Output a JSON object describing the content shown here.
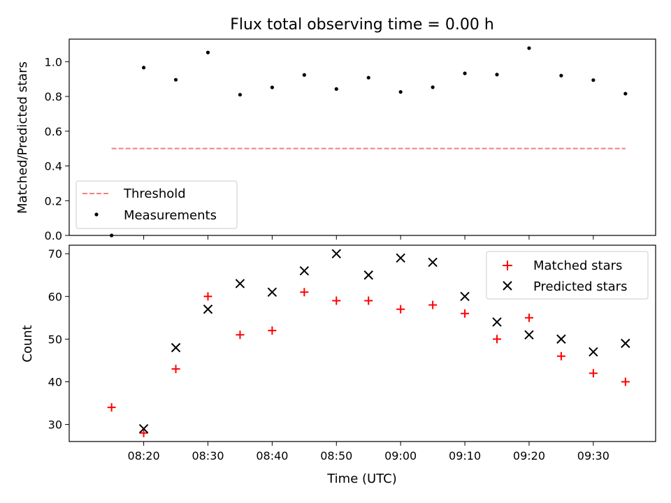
{
  "chart_data": {
    "title": "Flux total observing time = 0.00 h",
    "xlabel": "Time (UTC)",
    "x_tick_labels": [
      "08:20",
      "08:30",
      "08:40",
      "08:50",
      "09:00",
      "09:10",
      "09:20",
      "09:30"
    ],
    "x_tick_minutes": [
      500,
      510,
      520,
      530,
      540,
      550,
      560,
      570
    ],
    "xlim_minutes": [
      488.4,
      579.7
    ],
    "times": [
      "08:15",
      "08:20",
      "08:25",
      "08:30",
      "08:35",
      "08:40",
      "08:45",
      "08:50",
      "08:55",
      "09:00",
      "09:05",
      "09:10",
      "09:15",
      "09:20",
      "09:25",
      "09:30",
      "09:35"
    ],
    "time_minutes": [
      495,
      500,
      505,
      510,
      515,
      520,
      525,
      530,
      535,
      540,
      545,
      550,
      555,
      560,
      565,
      570,
      575
    ],
    "panels": [
      {
        "type": "scatter",
        "ylabel": "Matched/Predicted stars",
        "ylim": [
          0,
          1.13
        ],
        "yticks": [
          0.0,
          0.2,
          0.4,
          0.6,
          0.8,
          1.0
        ],
        "ytick_labels": [
          "0.0",
          "0.2",
          "0.4",
          "0.6",
          "0.8",
          "1.0"
        ],
        "threshold": {
          "name": "Threshold",
          "value": 0.5,
          "color": "#f08080",
          "x_range_minutes": [
            495,
            575
          ]
        },
        "series": [
          {
            "name": "Measurements",
            "marker": "dot",
            "color": "#000000",
            "values": [
              0.0,
              0.966,
              0.896,
              1.053,
              0.81,
              0.852,
              0.924,
              0.843,
              0.908,
              0.826,
              0.853,
              0.933,
              0.926,
              1.078,
              0.92,
              0.894,
              0.816
            ]
          }
        ],
        "legend_position": "lower-left"
      },
      {
        "type": "scatter",
        "ylabel": "Count",
        "ylim": [
          26,
          72
        ],
        "yticks": [
          30,
          40,
          50,
          60,
          70
        ],
        "ytick_labels": [
          "30",
          "40",
          "50",
          "60",
          "70"
        ],
        "series": [
          {
            "name": "Matched stars",
            "marker": "plus",
            "color": "#ff0000",
            "values": [
              34,
              28,
              43,
              60,
              51,
              52,
              61,
              59,
              59,
              57,
              58,
              56,
              50,
              55,
              46,
              42,
              40
            ]
          },
          {
            "name": "Predicted stars",
            "marker": "x",
            "color": "#000000",
            "values": [
              null,
              29,
              48,
              57,
              63,
              61,
              66,
              70,
              65,
              69,
              68,
              60,
              54,
              51,
              50,
              47,
              49
            ]
          }
        ],
        "legend_position": "upper-right"
      }
    ]
  }
}
